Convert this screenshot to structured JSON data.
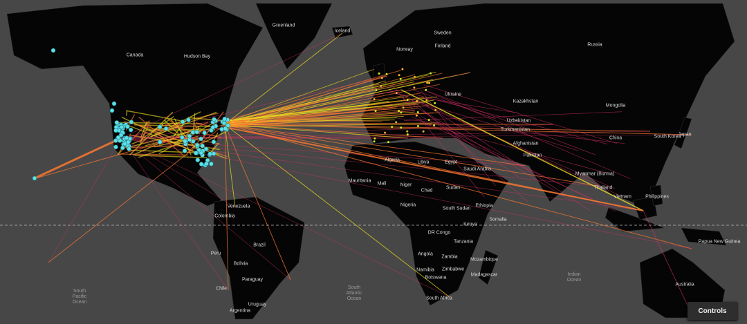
{
  "colors": {
    "ocean": "#474747",
    "land": "#050505",
    "route_hot": "#f0e020",
    "route_mid": "#ff7a30",
    "route_cool": "#e0306a",
    "node": "#5fe0e8"
  },
  "labels": {
    "greenland": "Greenland",
    "iceland": "Iceland",
    "canada": "Canada",
    "hudson_bay": "Hudson Bay",
    "sweden": "Sweden",
    "norway": "Norway",
    "finland": "Finland",
    "russia": "Russia",
    "ukraine": "Ukraine",
    "kazakhstan": "Kazakhstan",
    "mongolia": "Mongolia",
    "uzbekistan": "Uzbekistan",
    "turkmenistan": "Turkmenistan",
    "afghanistan": "Afghanistan",
    "pakistan": "Pakistan",
    "china": "China",
    "south_korea": "South Korea",
    "japan": "Japan",
    "algeria": "Algeria",
    "libya": "Libya",
    "egypt": "Egypt",
    "saudi_arabia": "Saudi Arabia",
    "mauritania": "Mauritania",
    "mali": "Mali",
    "niger": "Niger",
    "chad": "Chad",
    "sudan": "Sudan",
    "nigeria": "Nigeria",
    "south_sudan": "South Sudan",
    "ethiopia": "Ethiopia",
    "somalia": "Somalia",
    "kenya": "Kenya",
    "dr_congo": "DR Congo",
    "tanzania": "Tanzania",
    "angola": "Angola",
    "zambia": "Zambia",
    "mozambique": "Mozambique",
    "zimbabwe": "Zimbabwe",
    "namibia": "Namibia",
    "botswana": "Botswana",
    "south_africa": "South Africa",
    "madagascar": "Madagascar",
    "myanmar": "Myanmar (Burma)",
    "thailand": "Thailand",
    "vietnam": "Vietnam",
    "philippines": "Philippines",
    "papua": "Papua New Guinea",
    "australia": "Australia",
    "venezuela": "Venezuela",
    "colombia": "Colombia",
    "peru": "Peru",
    "brazil": "Brazil",
    "bolivia": "Bolivia",
    "paraguay": "Paraguay",
    "chile": "Chile",
    "uruguay": "Uruguay",
    "argentina": "Argentina",
    "south_pacific": "South\nPacific\nOcean",
    "south_atlantic": "South\nAtlantic\nOcean",
    "indian_ocean": "Indian\nOcean"
  },
  "controls": {
    "label": "Controls"
  }
}
